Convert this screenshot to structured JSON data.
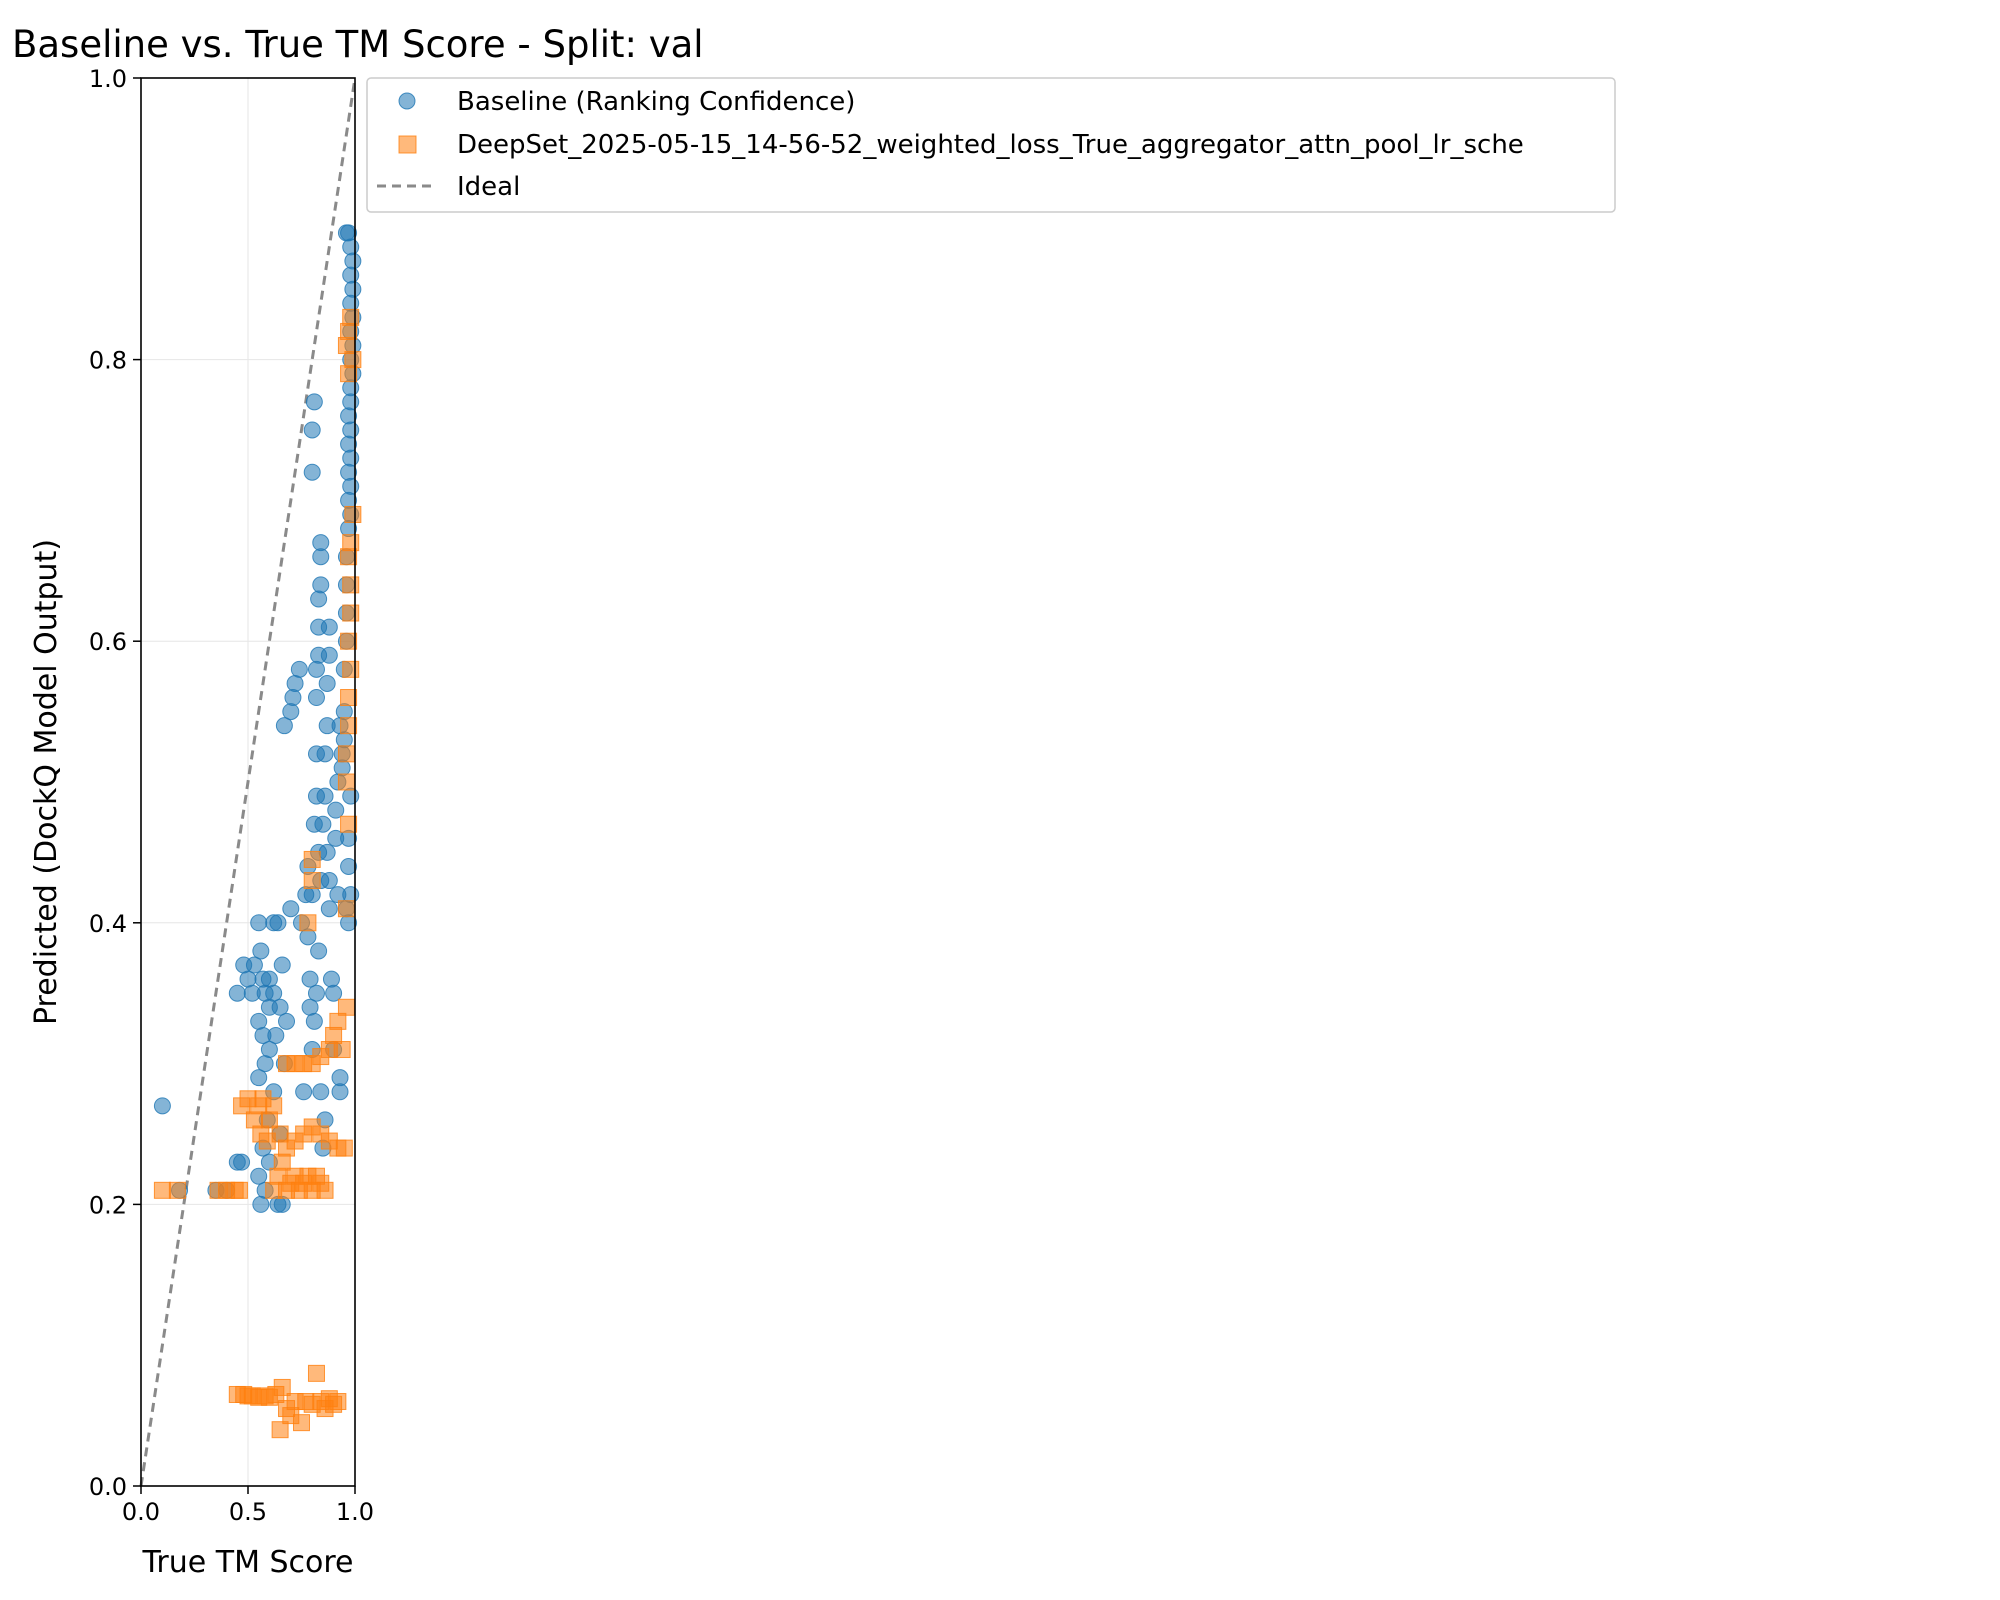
{
  "chart_data": {
    "type": "scatter",
    "title": "Baseline vs. True TM Score - Split: val",
    "xlabel": "True TM Score",
    "ylabel": "Predicted (DockQ Model Output)",
    "xlim": [
      0.0,
      1.0
    ],
    "ylim": [
      0.0,
      1.0
    ],
    "xticks": [
      "0.0",
      "0.5",
      "1.0"
    ],
    "yticks": [
      "0.0",
      "0.2",
      "0.4",
      "0.6",
      "0.8",
      "1.0"
    ],
    "grid": true,
    "legend_position": "outside-upper-right",
    "series": [
      {
        "name": "Baseline (Ranking Confidence)",
        "marker": "circle",
        "color": "#1f77b4",
        "points": [
          [
            0.1,
            0.27
          ],
          [
            0.18,
            0.21
          ],
          [
            0.35,
            0.21
          ],
          [
            0.4,
            0.21
          ],
          [
            0.45,
            0.23
          ],
          [
            0.47,
            0.23
          ],
          [
            0.45,
            0.35
          ],
          [
            0.48,
            0.37
          ],
          [
            0.5,
            0.36
          ],
          [
            0.52,
            0.35
          ],
          [
            0.55,
            0.4
          ],
          [
            0.53,
            0.37
          ],
          [
            0.56,
            0.38
          ],
          [
            0.57,
            0.36
          ],
          [
            0.58,
            0.35
          ],
          [
            0.55,
            0.33
          ],
          [
            0.57,
            0.32
          ],
          [
            0.6,
            0.34
          ],
          [
            0.58,
            0.3
          ],
          [
            0.55,
            0.29
          ],
          [
            0.6,
            0.36
          ],
          [
            0.62,
            0.35
          ],
          [
            0.63,
            0.32
          ],
          [
            0.6,
            0.31
          ],
          [
            0.62,
            0.28
          ],
          [
            0.59,
            0.26
          ],
          [
            0.57,
            0.24
          ],
          [
            0.55,
            0.22
          ],
          [
            0.56,
            0.2
          ],
          [
            0.58,
            0.21
          ],
          [
            0.6,
            0.23
          ],
          [
            0.62,
            0.4
          ],
          [
            0.64,
            0.4
          ],
          [
            0.66,
            0.37
          ],
          [
            0.65,
            0.34
          ],
          [
            0.67,
            0.3
          ],
          [
            0.65,
            0.25
          ],
          [
            0.64,
            0.2
          ],
          [
            0.66,
            0.2
          ],
          [
            0.68,
            0.33
          ],
          [
            0.7,
            0.41
          ],
          [
            0.7,
            0.55
          ],
          [
            0.71,
            0.56
          ],
          [
            0.72,
            0.57
          ],
          [
            0.67,
            0.54
          ],
          [
            0.74,
            0.58
          ],
          [
            0.75,
            0.4
          ],
          [
            0.76,
            0.28
          ],
          [
            0.77,
            0.42
          ],
          [
            0.78,
            0.44
          ],
          [
            0.78,
            0.39
          ],
          [
            0.79,
            0.36
          ],
          [
            0.79,
            0.34
          ],
          [
            0.8,
            0.72
          ],
          [
            0.8,
            0.75
          ],
          [
            0.81,
            0.77
          ],
          [
            0.8,
            0.42
          ],
          [
            0.81,
            0.47
          ],
          [
            0.82,
            0.49
          ],
          [
            0.82,
            0.52
          ],
          [
            0.82,
            0.56
          ],
          [
            0.82,
            0.58
          ],
          [
            0.83,
            0.59
          ],
          [
            0.83,
            0.61
          ],
          [
            0.83,
            0.63
          ],
          [
            0.84,
            0.64
          ],
          [
            0.84,
            0.66
          ],
          [
            0.84,
            0.67
          ],
          [
            0.83,
            0.45
          ],
          [
            0.84,
            0.43
          ],
          [
            0.83,
            0.38
          ],
          [
            0.82,
            0.35
          ],
          [
            0.81,
            0.33
          ],
          [
            0.8,
            0.31
          ],
          [
            0.84,
            0.28
          ],
          [
            0.85,
            0.24
          ],
          [
            0.86,
            0.26
          ],
          [
            0.85,
            0.47
          ],
          [
            0.86,
            0.49
          ],
          [
            0.86,
            0.52
          ],
          [
            0.87,
            0.54
          ],
          [
            0.87,
            0.57
          ],
          [
            0.88,
            0.59
          ],
          [
            0.88,
            0.61
          ],
          [
            0.87,
            0.45
          ],
          [
            0.88,
            0.43
          ],
          [
            0.88,
            0.41
          ],
          [
            0.89,
            0.36
          ],
          [
            0.9,
            0.35
          ],
          [
            0.9,
            0.31
          ],
          [
            0.91,
            0.46
          ],
          [
            0.91,
            0.48
          ],
          [
            0.92,
            0.5
          ],
          [
            0.92,
            0.42
          ],
          [
            0.93,
            0.29
          ],
          [
            0.93,
            0.28
          ],
          [
            0.93,
            0.54
          ],
          [
            0.94,
            0.52
          ],
          [
            0.94,
            0.51
          ],
          [
            0.95,
            0.53
          ],
          [
            0.95,
            0.55
          ],
          [
            0.95,
            0.58
          ],
          [
            0.96,
            0.6
          ],
          [
            0.96,
            0.62
          ],
          [
            0.96,
            0.64
          ],
          [
            0.96,
            0.66
          ],
          [
            0.97,
            0.68
          ],
          [
            0.97,
            0.7
          ],
          [
            0.97,
            0.72
          ],
          [
            0.97,
            0.74
          ],
          [
            0.97,
            0.76
          ],
          [
            0.98,
            0.78
          ],
          [
            0.98,
            0.8
          ],
          [
            0.98,
            0.82
          ],
          [
            0.98,
            0.84
          ],
          [
            0.98,
            0.86
          ],
          [
            0.98,
            0.88
          ],
          [
            0.97,
            0.89
          ],
          [
            0.96,
            0.89
          ],
          [
            0.99,
            0.87
          ],
          [
            0.99,
            0.85
          ],
          [
            0.99,
            0.83
          ],
          [
            0.99,
            0.81
          ],
          [
            0.99,
            0.79
          ],
          [
            0.98,
            0.77
          ],
          [
            0.98,
            0.75
          ],
          [
            0.98,
            0.73
          ],
          [
            0.98,
            0.71
          ],
          [
            0.98,
            0.69
          ],
          [
            0.97,
            0.46
          ],
          [
            0.97,
            0.44
          ],
          [
            0.98,
            0.42
          ],
          [
            0.97,
            0.4
          ],
          [
            0.96,
            0.41
          ],
          [
            0.98,
            0.49
          ]
        ]
      },
      {
        "name": "DeepSet_2025-05-15_14-56-52_weighted_loss_True_aggregator_attn_pool_lr_sche",
        "marker": "square",
        "color": "#ff7f0e",
        "points": [
          [
            0.1,
            0.21
          ],
          [
            0.17,
            0.21
          ],
          [
            0.36,
            0.21
          ],
          [
            0.4,
            0.21
          ],
          [
            0.44,
            0.21
          ],
          [
            0.46,
            0.21
          ],
          [
            0.45,
            0.065
          ],
          [
            0.48,
            0.065
          ],
          [
            0.5,
            0.064
          ],
          [
            0.52,
            0.064
          ],
          [
            0.55,
            0.063
          ],
          [
            0.58,
            0.064
          ],
          [
            0.6,
            0.063
          ],
          [
            0.63,
            0.065
          ],
          [
            0.65,
            0.04
          ],
          [
            0.66,
            0.07
          ],
          [
            0.68,
            0.055
          ],
          [
            0.7,
            0.05
          ],
          [
            0.72,
            0.06
          ],
          [
            0.75,
            0.045
          ],
          [
            0.77,
            0.06
          ],
          [
            0.8,
            0.058
          ],
          [
            0.82,
            0.08
          ],
          [
            0.84,
            0.06
          ],
          [
            0.86,
            0.055
          ],
          [
            0.88,
            0.062
          ],
          [
            0.9,
            0.058
          ],
          [
            0.92,
            0.06
          ],
          [
            0.47,
            0.27
          ],
          [
            0.5,
            0.275
          ],
          [
            0.53,
            0.26
          ],
          [
            0.55,
            0.27
          ],
          [
            0.57,
            0.275
          ],
          [
            0.6,
            0.26
          ],
          [
            0.62,
            0.27
          ],
          [
            0.56,
            0.25
          ],
          [
            0.59,
            0.245
          ],
          [
            0.62,
            0.21
          ],
          [
            0.64,
            0.22
          ],
          [
            0.66,
            0.23
          ],
          [
            0.68,
            0.21
          ],
          [
            0.7,
            0.215
          ],
          [
            0.72,
            0.22
          ],
          [
            0.74,
            0.21
          ],
          [
            0.76,
            0.215
          ],
          [
            0.78,
            0.22
          ],
          [
            0.8,
            0.21
          ],
          [
            0.82,
            0.22
          ],
          [
            0.84,
            0.215
          ],
          [
            0.86,
            0.21
          ],
          [
            0.65,
            0.25
          ],
          [
            0.68,
            0.24
          ],
          [
            0.72,
            0.245
          ],
          [
            0.76,
            0.25
          ],
          [
            0.8,
            0.255
          ],
          [
            0.84,
            0.25
          ],
          [
            0.88,
            0.245
          ],
          [
            0.92,
            0.24
          ],
          [
            0.95,
            0.24
          ],
          [
            0.68,
            0.3
          ],
          [
            0.72,
            0.3
          ],
          [
            0.76,
            0.3
          ],
          [
            0.8,
            0.3
          ],
          [
            0.84,
            0.305
          ],
          [
            0.88,
            0.31
          ],
          [
            0.9,
            0.32
          ],
          [
            0.92,
            0.33
          ],
          [
            0.94,
            0.31
          ],
          [
            0.96,
            0.34
          ],
          [
            0.8,
            0.43
          ],
          [
            0.8,
            0.445
          ],
          [
            0.78,
            0.4
          ],
          [
            0.96,
            0.41
          ],
          [
            0.97,
            0.47
          ],
          [
            0.96,
            0.5
          ],
          [
            0.96,
            0.52
          ],
          [
            0.97,
            0.54
          ],
          [
            0.97,
            0.56
          ],
          [
            0.98,
            0.58
          ],
          [
            0.97,
            0.6
          ],
          [
            0.98,
            0.62
          ],
          [
            0.98,
            0.64
          ],
          [
            0.97,
            0.66
          ],
          [
            0.98,
            0.67
          ],
          [
            0.99,
            0.69
          ],
          [
            0.96,
            0.81
          ],
          [
            0.97,
            0.82
          ],
          [
            0.98,
            0.83
          ],
          [
            0.99,
            0.8
          ],
          [
            0.97,
            0.79
          ]
        ]
      },
      {
        "name": "Ideal",
        "style": "dashed-line",
        "color": "#8a8a8a",
        "points": [
          [
            0.0,
            0.0
          ],
          [
            1.0,
            1.0
          ]
        ]
      }
    ]
  }
}
